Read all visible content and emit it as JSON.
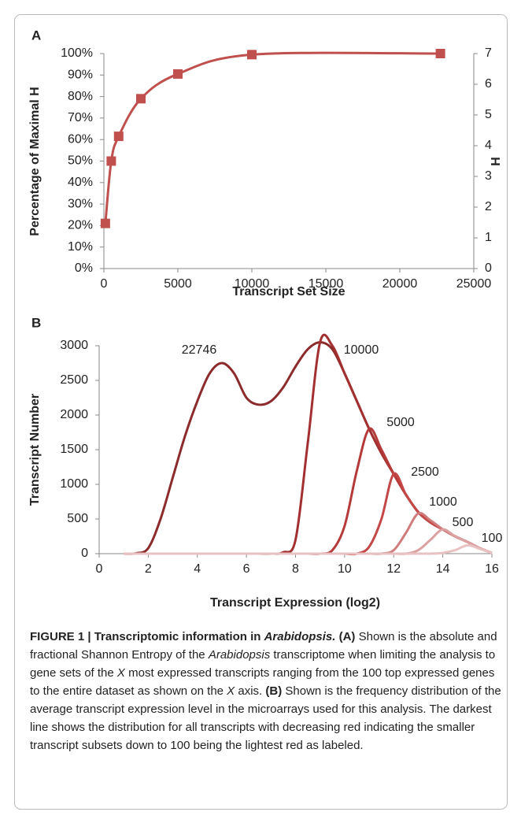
{
  "chart_data": [
    {
      "type": "line",
      "panel": "A",
      "ylabel": "Percentage of Maximal H",
      "y2label": "H",
      "xlabel": "Transcript Set Size",
      "x": [
        100,
        500,
        1000,
        2500,
        5000,
        10000,
        22746
      ],
      "values": [
        21,
        50,
        61.5,
        79,
        90.5,
        99.5,
        100
      ],
      "color": "#c0504d",
      "marker": "square",
      "xlim": [
        0,
        25000
      ],
      "xticks": [
        0,
        5000,
        10000,
        15000,
        20000,
        25000
      ],
      "ylim": [
        0,
        100
      ],
      "yticks": [
        {
          "value": 0,
          "label": "0%"
        },
        {
          "value": 10,
          "label": "10%"
        },
        {
          "value": 20,
          "label": "20%"
        },
        {
          "value": 30,
          "label": "30%"
        },
        {
          "value": 40,
          "label": "40%"
        },
        {
          "value": 50,
          "label": "50%"
        },
        {
          "value": 60,
          "label": "60%"
        },
        {
          "value": 70,
          "label": "70%"
        },
        {
          "value": 80,
          "label": "80%"
        },
        {
          "value": 90,
          "label": "90%"
        },
        {
          "value": 100,
          "label": "100%"
        }
      ],
      "y2lim": [
        0,
        7
      ],
      "y2ticks": [
        0,
        1,
        2,
        3,
        4,
        5,
        6,
        7
      ]
    },
    {
      "type": "line",
      "panel": "B",
      "ylabel": "Transcript Number",
      "xlabel": "Transcript Expression (log2)",
      "x": [
        1,
        1.5,
        2,
        2.5,
        3,
        3.5,
        4,
        4.5,
        5,
        5.5,
        6,
        6.5,
        7,
        7.5,
        8,
        8.5,
        9,
        9.5,
        10,
        10.5,
        11,
        11.5,
        12,
        12.5,
        13,
        13.5,
        14,
        14.5,
        15,
        15.5,
        16
      ],
      "series": [
        {
          "name": "22746",
          "color": "#8c2b2b",
          "values": [
            0,
            5,
            80,
            500,
            1100,
            1700,
            2200,
            2600,
            2750,
            2600,
            2250,
            2150,
            2200,
            2400,
            2700,
            2950,
            3050,
            2950,
            2600,
            2200,
            1800,
            1450,
            1150,
            850,
            600,
            450,
            350,
            250,
            170,
            80,
            10
          ]
        },
        {
          "name": "10000",
          "color": "#a33030",
          "values": [
            0,
            0,
            0,
            0,
            0,
            0,
            0,
            0,
            0,
            0,
            0,
            0,
            0,
            20,
            200,
            1600,
            3050,
            3000,
            2600,
            2200,
            1800,
            1450,
            1150,
            850,
            600,
            450,
            350,
            250,
            170,
            80,
            10
          ]
        },
        {
          "name": "5000",
          "color": "#b53a3a",
          "values": [
            0,
            0,
            0,
            0,
            0,
            0,
            0,
            0,
            0,
            0,
            0,
            0,
            0,
            0,
            0,
            0,
            0,
            50,
            400,
            1200,
            1800,
            1500,
            1150,
            850,
            600,
            450,
            350,
            250,
            170,
            80,
            10
          ]
        },
        {
          "name": "2500",
          "color": "#c44848",
          "values": [
            0,
            0,
            0,
            0,
            0,
            0,
            0,
            0,
            0,
            0,
            0,
            0,
            0,
            0,
            0,
            0,
            0,
            0,
            0,
            0,
            100,
            500,
            1150,
            850,
            600,
            450,
            350,
            250,
            170,
            80,
            10
          ]
        },
        {
          "name": "1000",
          "color": "#d07c7c",
          "values": [
            0,
            0,
            0,
            0,
            0,
            0,
            0,
            0,
            0,
            0,
            0,
            0,
            0,
            0,
            0,
            0,
            0,
            0,
            0,
            0,
            0,
            0,
            50,
            300,
            580,
            480,
            350,
            250,
            170,
            80,
            10
          ]
        },
        {
          "name": "500",
          "color": "#dca2a2",
          "values": [
            0,
            0,
            0,
            0,
            0,
            0,
            0,
            0,
            0,
            0,
            0,
            0,
            0,
            0,
            0,
            0,
            0,
            0,
            0,
            0,
            0,
            0,
            0,
            0,
            50,
            200,
            350,
            250,
            170,
            80,
            10
          ]
        },
        {
          "name": "100",
          "color": "#e8c2c2",
          "values": [
            0,
            0,
            0,
            0,
            0,
            0,
            0,
            0,
            0,
            0,
            0,
            0,
            0,
            0,
            0,
            0,
            0,
            0,
            0,
            0,
            0,
            0,
            0,
            0,
            0,
            0,
            10,
            50,
            120,
            70,
            10
          ]
        }
      ],
      "xlim": [
        0,
        16
      ],
      "xticks": [
        0,
        2,
        4,
        6,
        8,
        10,
        12,
        14,
        16
      ],
      "ylim": [
        0,
        3000
      ],
      "yticks": [
        0,
        500,
        1000,
        1500,
        2000,
        2500,
        3000
      ]
    }
  ],
  "caption": [
    "FIGURE 1 | Transcriptomic information in",
    "Arabidopsis.",
    "(A)",
    "Shown is the absolute and fractional Shannon Entropy of the",
    "Arabidopsis",
    "transcriptome when limiting the analysis to gene sets of the",
    "X",
    "most expressed transcripts ranging from the 100 top expressed genes to the entire dataset as shown on the",
    "X",
    "axis.",
    "(B)",
    "Shown is the frequency distribution of the average transcript expression level in the microarrays used for this analysis. The darkest line shows the distribution for all transcripts with decreasing red indicating the smaller transcript subsets down to 100 being the lightest red as labeled."
  ]
}
